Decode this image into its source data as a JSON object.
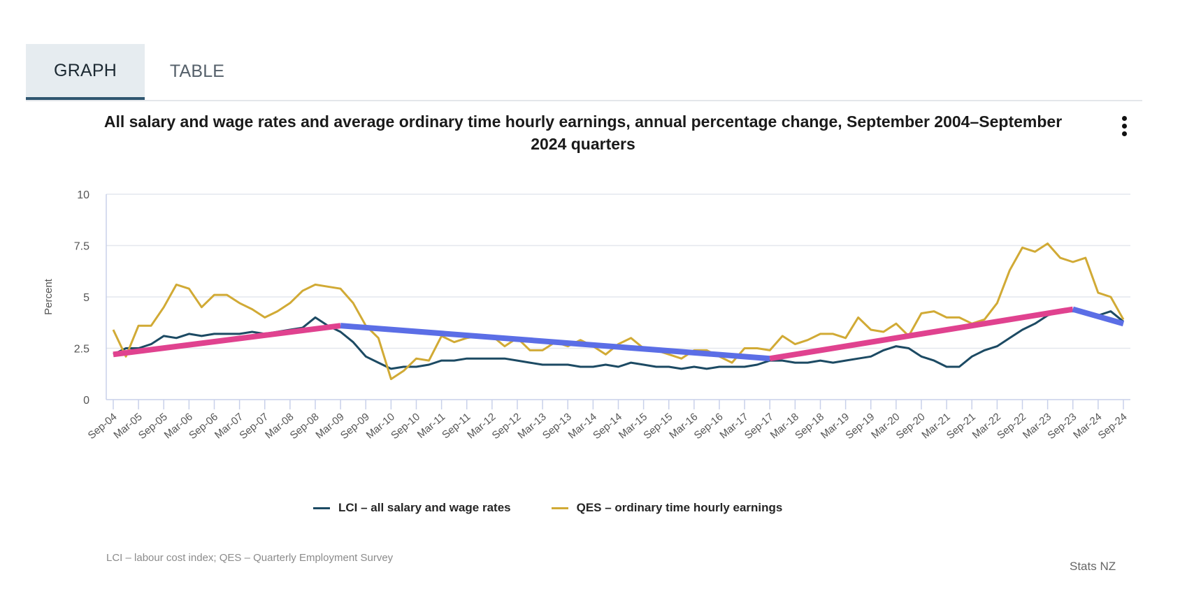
{
  "tabs": [
    {
      "label": "GRAPH",
      "active": true
    },
    {
      "label": "TABLE",
      "active": false
    }
  ],
  "menu_icon": "vertical-ellipsis-icon",
  "footer": {
    "note": "LCI – labour cost index; QES – Quarterly Employment Survey",
    "credit": "Stats NZ"
  },
  "colors": {
    "lci": "#1c4a63",
    "qes": "#d1aa35",
    "trend_up": "#e0428f",
    "trend_down": "#5b6ee6",
    "grid": "#e4e7ee",
    "axis": "#c8d0ea",
    "tab_active_bg": "#e6ecf0",
    "tab_underline": "#2f5670"
  },
  "chart_data": {
    "type": "line",
    "title": "All salary and wage rates and average ordinary time hourly earnings, annual percentage change, September 2004–September 2024 quarters",
    "xlabel": "",
    "ylabel": "Percent",
    "ylim": [
      0,
      10
    ],
    "yticks": [
      0,
      2.5,
      5,
      7.5,
      10
    ],
    "ytick_labels": [
      "0",
      "2.5",
      "5",
      "7.5",
      "10"
    ],
    "grid": true,
    "legend_position": "bottom-center",
    "x_tick_labels": [
      "Sep-04",
      "Mar-05",
      "Sep-05",
      "Mar-06",
      "Sep-06",
      "Mar-07",
      "Sep-07",
      "Mar-08",
      "Sep-08",
      "Mar-09",
      "Sep-09",
      "Mar-10",
      "Sep-10",
      "Mar-11",
      "Sep-11",
      "Mar-12",
      "Sep-12",
      "Mar-13",
      "Sep-13",
      "Mar-14",
      "Sep-14",
      "Mar-15",
      "Sep-15",
      "Mar-16",
      "Sep-16",
      "Mar-17",
      "Sep-17",
      "Mar-18",
      "Sep-18",
      "Mar-19",
      "Sep-19",
      "Mar-20",
      "Sep-20",
      "Mar-21",
      "Sep-21",
      "Mar-22",
      "Sep-22",
      "Mar-23",
      "Sep-23",
      "Mar-24",
      "Sep-24"
    ],
    "x_quarters_count": 81,
    "series": [
      {
        "name": "LCI – all salary and wage rates",
        "color_key": "lci",
        "values": [
          2.2,
          2.5,
          2.5,
          2.7,
          3.1,
          3.0,
          3.2,
          3.1,
          3.2,
          3.2,
          3.2,
          3.3,
          3.2,
          3.3,
          3.4,
          3.5,
          4.0,
          3.6,
          3.3,
          2.8,
          2.1,
          1.8,
          1.5,
          1.6,
          1.6,
          1.7,
          1.9,
          1.9,
          2.0,
          2.0,
          2.0,
          2.0,
          1.9,
          1.8,
          1.7,
          1.7,
          1.7,
          1.6,
          1.6,
          1.7,
          1.6,
          1.8,
          1.7,
          1.6,
          1.6,
          1.5,
          1.6,
          1.5,
          1.6,
          1.6,
          1.6,
          1.7,
          1.9,
          1.9,
          1.8,
          1.8,
          1.9,
          1.8,
          1.9,
          2.0,
          2.1,
          2.4,
          2.6,
          2.5,
          2.1,
          1.9,
          1.6,
          1.6,
          2.1,
          2.4,
          2.6,
          3.0,
          3.4,
          3.7,
          4.1,
          4.3,
          4.3,
          4.3,
          4.1,
          4.3,
          3.8
        ]
      },
      {
        "name": "QES – ordinary time hourly earnings",
        "color_key": "qes",
        "values": [
          3.4,
          2.1,
          3.6,
          3.6,
          4.5,
          5.6,
          5.4,
          4.5,
          5.1,
          5.1,
          4.7,
          4.4,
          4.0,
          4.3,
          4.7,
          5.3,
          5.6,
          5.5,
          5.4,
          4.7,
          3.6,
          3.0,
          1.0,
          1.4,
          2.0,
          1.9,
          3.1,
          2.8,
          3.0,
          3.1,
          3.1,
          2.6,
          3.0,
          2.4,
          2.4,
          2.8,
          2.6,
          2.9,
          2.6,
          2.2,
          2.7,
          3.0,
          2.5,
          2.4,
          2.2,
          2.0,
          2.4,
          2.4,
          2.1,
          1.8,
          2.5,
          2.5,
          2.4,
          3.1,
          2.7,
          2.9,
          3.2,
          3.2,
          3.0,
          4.0,
          3.4,
          3.3,
          3.7,
          3.1,
          4.2,
          4.3,
          4.0,
          4.0,
          3.7,
          3.9,
          4.7,
          6.3,
          7.4,
          7.2,
          7.6,
          6.9,
          6.7,
          6.9,
          5.2,
          5.0,
          3.9
        ]
      }
    ],
    "annotations": [
      {
        "type": "trend-segment",
        "direction": "up",
        "from_index": 0,
        "to_index": 18,
        "from_value": 2.2,
        "to_value": 3.6
      },
      {
        "type": "trend-segment",
        "direction": "down",
        "from_index": 18,
        "to_index": 52,
        "from_value": 3.6,
        "to_value": 2.0
      },
      {
        "type": "trend-segment",
        "direction": "up",
        "from_index": 52,
        "to_index": 76,
        "from_value": 2.0,
        "to_value": 4.4
      },
      {
        "type": "trend-segment",
        "direction": "down",
        "from_index": 76,
        "to_index": 80,
        "from_value": 4.4,
        "to_value": 3.7
      }
    ]
  }
}
